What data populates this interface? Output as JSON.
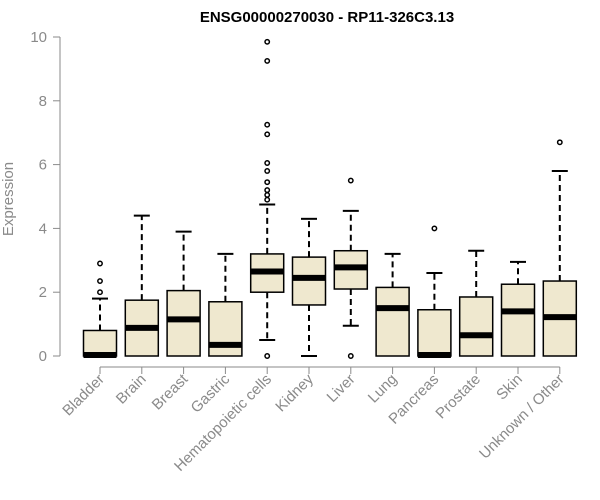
{
  "chart_data": {
    "type": "box",
    "title": "ENSG00000270030 - RP11-326C3.13",
    "xlabel": "",
    "ylabel": "Expression",
    "ylim": [
      0,
      10
    ],
    "yticks": [
      0,
      2,
      4,
      6,
      8,
      10
    ],
    "grid": false,
    "legend": "none",
    "categories": [
      "Bladder",
      "Brain",
      "Breast",
      "Gastric",
      "Hematopoietic cells",
      "Kidney",
      "Liver",
      "Lung",
      "Pancreas",
      "Prostate",
      "Skin",
      "Unknown / Other"
    ],
    "boxes": [
      {
        "category": "Bladder",
        "min": 0,
        "q1": 0,
        "median": 0.03,
        "q3": 0.8,
        "max": 1.8,
        "outliers": [
          2.0,
          2.35,
          2.9
        ]
      },
      {
        "category": "Brain",
        "min": 0,
        "q1": 0,
        "median": 0.88,
        "q3": 1.75,
        "max": 4.4,
        "outliers": []
      },
      {
        "category": "Breast",
        "min": 0,
        "q1": 0,
        "median": 1.15,
        "q3": 2.05,
        "max": 3.9,
        "outliers": []
      },
      {
        "category": "Gastric",
        "min": 0,
        "q1": 0,
        "median": 0.35,
        "q3": 1.7,
        "max": 3.2,
        "outliers": []
      },
      {
        "category": "Hematopoietic cells",
        "min": 0.5,
        "q1": 2.0,
        "median": 2.65,
        "q3": 3.2,
        "max": 4.75,
        "outliers": [
          0.0,
          4.9,
          5.05,
          5.2,
          5.45,
          5.8,
          6.05,
          6.95,
          7.25,
          9.25,
          9.85
        ]
      },
      {
        "category": "Kidney",
        "min": 0,
        "q1": 1.6,
        "median": 2.45,
        "q3": 3.1,
        "max": 4.3,
        "outliers": []
      },
      {
        "category": "Liver",
        "min": 0.95,
        "q1": 2.1,
        "median": 2.78,
        "q3": 3.3,
        "max": 4.55,
        "outliers": [
          0.0,
          5.5
        ]
      },
      {
        "category": "Lung",
        "min": 0,
        "q1": 0,
        "median": 1.5,
        "q3": 2.15,
        "max": 3.2,
        "outliers": []
      },
      {
        "category": "Pancreas",
        "min": 0,
        "q1": 0,
        "median": 0.03,
        "q3": 1.45,
        "max": 2.6,
        "outliers": [
          4.0
        ]
      },
      {
        "category": "Prostate",
        "min": 0,
        "q1": 0,
        "median": 0.65,
        "q3": 1.85,
        "max": 3.3,
        "outliers": []
      },
      {
        "category": "Skin",
        "min": 0,
        "q1": 0,
        "median": 1.4,
        "q3": 2.25,
        "max": 2.95,
        "outliers": []
      },
      {
        "category": "Unknown / Other",
        "min": 0,
        "q1": 0,
        "median": 1.22,
        "q3": 2.35,
        "max": 5.8,
        "outliers": [
          6.7
        ]
      }
    ],
    "colors": {
      "box_fill": "#efe8cf",
      "box_stroke": "#000000",
      "axis": "#8a8a8a",
      "title": "#000000"
    }
  }
}
